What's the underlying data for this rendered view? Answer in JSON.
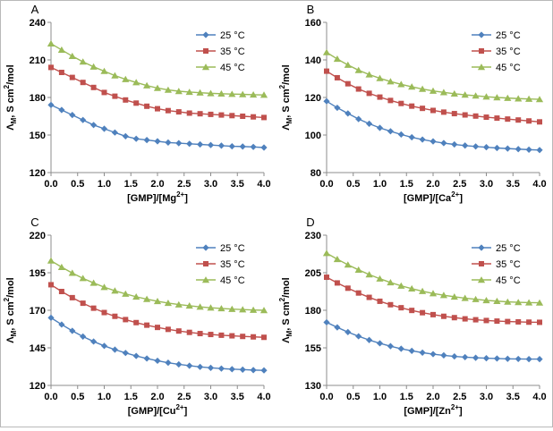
{
  "figure": {
    "legend_labels": [
      "25 °C",
      "35 °C",
      "45 °C"
    ],
    "colors": {
      "t25": "#4F81BD",
      "t35": "#C0504D",
      "t45": "#9BBB59"
    }
  },
  "chart_data": [
    {
      "type": "line",
      "panel_label": "A",
      "xlabel_parts": [
        {
          "t": "[GMP]/[Mg"
        },
        {
          "t": "2+",
          "sup": true
        },
        {
          "t": "]"
        }
      ],
      "ylabel_parts": [
        {
          "t": "Λ"
        },
        {
          "t": "M",
          "sub": true
        },
        {
          "t": ", S cm"
        },
        {
          "t": "2",
          "sup": true
        },
        {
          "t": "/mol"
        }
      ],
      "xlim": [
        0,
        4
      ],
      "xticks": [
        0,
        0.5,
        1,
        1.5,
        2,
        2.5,
        3,
        3.5,
        4
      ],
      "ylim": [
        120,
        240
      ],
      "yticks": [
        120,
        150,
        180,
        210,
        240
      ],
      "legend_position": "top-right",
      "grid": false,
      "x": [
        0,
        0.2,
        0.4,
        0.6,
        0.8,
        1.0,
        1.2,
        1.4,
        1.6,
        1.8,
        2.0,
        2.2,
        2.4,
        2.6,
        2.8,
        3.0,
        3.2,
        3.4,
        3.6,
        3.8,
        4.0
      ],
      "series": [
        {
          "name": "25 °C",
          "marker": "diamond",
          "color": "#4F81BD",
          "values": [
            174,
            170,
            166,
            162,
            158,
            155,
            152,
            149,
            147,
            146,
            145,
            144,
            143.5,
            143,
            142.5,
            142,
            141.5,
            141,
            140.8,
            140.5,
            140
          ]
        },
        {
          "name": "35 °C",
          "marker": "square",
          "color": "#C0504D",
          "values": [
            204,
            200,
            196,
            192,
            188,
            184,
            181,
            178,
            175.5,
            173,
            171,
            169.5,
            168.5,
            167.5,
            167,
            166.5,
            166,
            165.5,
            165,
            164.5,
            164
          ]
        },
        {
          "name": "45 °C",
          "marker": "triangle",
          "color": "#9BBB59",
          "values": [
            223,
            218,
            213,
            208.5,
            204.5,
            201,
            197.5,
            194.5,
            192,
            189.5,
            187.5,
            186,
            185,
            184.3,
            183.8,
            183.3,
            183,
            182.7,
            182.5,
            182.2,
            182
          ]
        }
      ]
    },
    {
      "type": "line",
      "panel_label": "B",
      "xlabel_parts": [
        {
          "t": "[GMP]/[Ca"
        },
        {
          "t": "2+",
          "sup": true
        },
        {
          "t": "]"
        }
      ],
      "ylabel_parts": [
        {
          "t": "Λ"
        },
        {
          "t": "M",
          "sub": true
        },
        {
          "t": ", S cm"
        },
        {
          "t": "2",
          "sup": true
        },
        {
          "t": "/mol"
        }
      ],
      "xlim": [
        0,
        4
      ],
      "xticks": [
        0,
        0.5,
        1,
        1.5,
        2,
        2.5,
        3,
        3.5,
        4
      ],
      "ylim": [
        80,
        160
      ],
      "yticks": [
        80,
        100,
        120,
        140,
        160
      ],
      "legend_position": "top-right",
      "grid": false,
      "x": [
        0,
        0.2,
        0.4,
        0.6,
        0.8,
        1.0,
        1.2,
        1.4,
        1.6,
        1.8,
        2.0,
        2.2,
        2.4,
        2.6,
        2.8,
        3.0,
        3.2,
        3.4,
        3.6,
        3.8,
        4.0
      ],
      "series": [
        {
          "name": "25 °C",
          "marker": "diamond",
          "color": "#4F81BD",
          "values": [
            118,
            114.5,
            111.5,
            108.5,
            106,
            103.8,
            102,
            100.3,
            98.8,
            97.6,
            96.6,
            95.7,
            95,
            94.4,
            93.9,
            93.5,
            93.1,
            92.8,
            92.5,
            92.2,
            92
          ]
        },
        {
          "name": "35 °C",
          "marker": "square",
          "color": "#C0504D",
          "values": [
            134,
            130.5,
            127.3,
            124.5,
            122.2,
            120.2,
            118.4,
            116.8,
            115.4,
            114.2,
            113.1,
            112.2,
            111.4,
            110.7,
            110.1,
            109.5,
            109,
            108.5,
            108,
            107.5,
            107
          ]
        },
        {
          "name": "45 °C",
          "marker": "triangle",
          "color": "#9BBB59",
          "values": [
            144,
            140.5,
            137.3,
            134.5,
            132.2,
            130.2,
            128.5,
            127,
            125.7,
            124.5,
            123.5,
            122.7,
            122,
            121.4,
            120.9,
            120.4,
            120,
            119.7,
            119.4,
            119.2,
            119
          ]
        }
      ]
    },
    {
      "type": "line",
      "panel_label": "C",
      "xlabel_parts": [
        {
          "t": "[GMP]/[Cu"
        },
        {
          "t": "2+",
          "sup": true
        },
        {
          "t": "]"
        }
      ],
      "ylabel_parts": [
        {
          "t": "Λ"
        },
        {
          "t": "M",
          "sub": true
        },
        {
          "t": ", S cm"
        },
        {
          "t": "2",
          "sup": true
        },
        {
          "t": "/mol"
        }
      ],
      "xlim": [
        0,
        4
      ],
      "xticks": [
        0,
        0.5,
        1,
        1.5,
        2,
        2.5,
        3,
        3.5,
        4
      ],
      "ylim": [
        120,
        220
      ],
      "yticks": [
        120,
        145,
        170,
        195,
        220
      ],
      "legend_position": "top-right",
      "grid": false,
      "x": [
        0,
        0.2,
        0.4,
        0.6,
        0.8,
        1.0,
        1.2,
        1.4,
        1.6,
        1.8,
        2.0,
        2.2,
        2.4,
        2.6,
        2.8,
        3.0,
        3.2,
        3.4,
        3.6,
        3.8,
        4.0
      ],
      "series": [
        {
          "name": "25 °C",
          "marker": "diamond",
          "color": "#4F81BD",
          "values": [
            165,
            160.5,
            156.3,
            152.5,
            149.2,
            146.3,
            143.8,
            141.6,
            139.6,
            137.9,
            136.4,
            135.1,
            134,
            133.1,
            132.3,
            131.7,
            131.2,
            130.8,
            130.5,
            130.2,
            130
          ]
        },
        {
          "name": "35 °C",
          "marker": "square",
          "color": "#C0504D",
          "values": [
            187,
            182.5,
            178.4,
            174.7,
            171.4,
            168.5,
            166,
            163.8,
            161.8,
            160.1,
            158.6,
            157.3,
            156.2,
            155.3,
            154.5,
            153.9,
            153.4,
            153,
            152.6,
            152.3,
            152
          ]
        },
        {
          "name": "45 °C",
          "marker": "triangle",
          "color": "#9BBB59",
          "values": [
            203,
            198.7,
            194.8,
            191.3,
            188.2,
            185.4,
            183,
            180.9,
            179,
            177.4,
            176,
            174.8,
            173.8,
            173,
            172.3,
            171.7,
            171.2,
            170.8,
            170.5,
            170.2,
            170
          ]
        }
      ]
    },
    {
      "type": "line",
      "panel_label": "D",
      "xlabel_parts": [
        {
          "t": "[GMP]/[Zn"
        },
        {
          "t": "2+",
          "sup": true
        },
        {
          "t": "]"
        }
      ],
      "ylabel_parts": [
        {
          "t": "Λ"
        },
        {
          "t": "M",
          "sub": true
        },
        {
          "t": ", S cm"
        },
        {
          "t": "2",
          "sup": true
        },
        {
          "t": "/mol"
        }
      ],
      "xlim": [
        0,
        4
      ],
      "xticks": [
        0,
        0.5,
        1,
        1.5,
        2,
        2.5,
        3,
        3.5,
        4
      ],
      "ylim": [
        130,
        230
      ],
      "yticks": [
        130,
        155,
        180,
        205,
        230
      ],
      "legend_position": "top-right",
      "grid": false,
      "x": [
        0,
        0.2,
        0.4,
        0.6,
        0.8,
        1.0,
        1.2,
        1.4,
        1.6,
        1.8,
        2.0,
        2.2,
        2.4,
        2.6,
        2.8,
        3.0,
        3.2,
        3.4,
        3.6,
        3.8,
        4.0
      ],
      "series": [
        {
          "name": "25 °C",
          "marker": "diamond",
          "color": "#4F81BD",
          "values": [
            172,
            168.6,
            165.5,
            162.7,
            160.2,
            158,
            156.1,
            154.4,
            153,
            151.8,
            150.8,
            150,
            149.3,
            148.8,
            148.4,
            148.1,
            147.9,
            147.7,
            147.6,
            147.5,
            147.5
          ]
        },
        {
          "name": "35 °C",
          "marker": "square",
          "color": "#C0504D",
          "values": [
            202,
            198.2,
            194.7,
            191.5,
            188.6,
            186,
            183.7,
            181.7,
            179.9,
            178.4,
            177.1,
            176,
            175.1,
            174.3,
            173.7,
            173.2,
            172.8,
            172.5,
            172.3,
            172.1,
            172
          ]
        },
        {
          "name": "45 °C",
          "marker": "triangle",
          "color": "#9BBB59",
          "values": [
            218,
            214,
            210.3,
            206.9,
            203.8,
            201,
            198.5,
            196.3,
            194.4,
            192.7,
            191.2,
            190,
            189,
            188.1,
            187.3,
            186.6,
            186.1,
            185.6,
            185.3,
            185.1,
            185
          ]
        }
      ]
    }
  ]
}
